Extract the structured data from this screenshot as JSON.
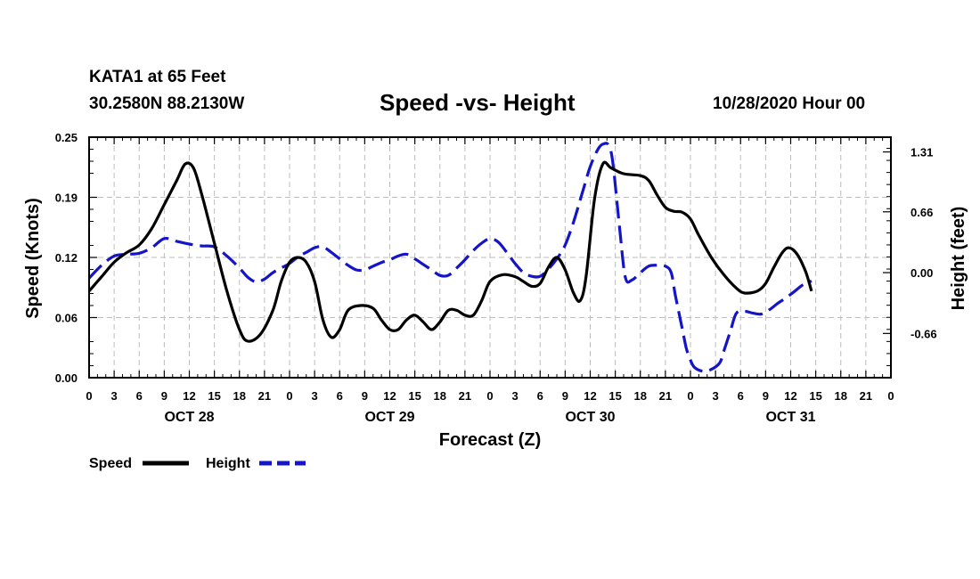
{
  "header": {
    "station": "KATA1 at 65 Feet",
    "coords": "30.2580N 88.2130W",
    "title": "Speed -vs- Height",
    "datetime": "10/28/2020 Hour 00"
  },
  "chart_data": {
    "type": "line",
    "title": "Speed -vs- Height",
    "xlabel": "Forecast (Z)",
    "ylabel_left": "Speed (Knots)",
    "ylabel_right": "Height (feet)",
    "x_range_hours": [
      0,
      96
    ],
    "x_tick_step_hours": 3,
    "x_tick_labels": [
      "0",
      "3",
      "6",
      "9",
      "12",
      "15",
      "18",
      "21",
      "0",
      "3",
      "6",
      "9",
      "12",
      "15",
      "18",
      "21",
      "0",
      "3",
      "6",
      "9",
      "12",
      "15",
      "18",
      "21",
      "0",
      "3",
      "6",
      "9",
      "12",
      "15",
      "18",
      "21",
      "0"
    ],
    "day_labels": [
      {
        "label": "OCT 28",
        "hour": 12
      },
      {
        "label": "OCT 29",
        "hour": 36
      },
      {
        "label": "OCT 30",
        "hour": 60
      },
      {
        "label": "OCT 31",
        "hour": 84
      }
    ],
    "y_left": {
      "range": [
        0,
        0.25
      ],
      "ticks": [
        "0.00",
        "0.06",
        "0.12",
        "0.19",
        "0.25"
      ],
      "tick_values": [
        0.0,
        0.0625,
        0.125,
        0.1875,
        0.25
      ]
    },
    "y_right": {
      "range": [
        -1.14,
        1.47
      ],
      "ticks": [
        "-0.66",
        "0.00",
        "0.66",
        "1.31"
      ],
      "tick_values": [
        -0.66,
        0.0,
        0.66,
        1.31
      ]
    },
    "grid": true,
    "legend": [
      {
        "label": "Speed",
        "color": "#000000",
        "style": "solid"
      },
      {
        "label": "Height",
        "color": "#1414c8",
        "style": "dashed"
      }
    ],
    "series": [
      {
        "name": "Speed",
        "axis": "left",
        "color": "#000000",
        "style": "solid",
        "points": [
          [
            0,
            0.09
          ],
          [
            1.5,
            0.105
          ],
          [
            3,
            0.12
          ],
          [
            4.5,
            0.13
          ],
          [
            6,
            0.138
          ],
          [
            7.5,
            0.155
          ],
          [
            9,
            0.18
          ],
          [
            10.5,
            0.205
          ],
          [
            11.5,
            0.222
          ],
          [
            12.5,
            0.218
          ],
          [
            13.5,
            0.19
          ],
          [
            15,
            0.14
          ],
          [
            16.5,
            0.09
          ],
          [
            18,
            0.05
          ],
          [
            19,
            0.038
          ],
          [
            20.5,
            0.045
          ],
          [
            22,
            0.07
          ],
          [
            23,
            0.1
          ],
          [
            24,
            0.12
          ],
          [
            25,
            0.125
          ],
          [
            26,
            0.12
          ],
          [
            27,
            0.1
          ],
          [
            28,
            0.06
          ],
          [
            29,
            0.042
          ],
          [
            30,
            0.05
          ],
          [
            31,
            0.07
          ],
          [
            32.5,
            0.075
          ],
          [
            34,
            0.072
          ],
          [
            35,
            0.06
          ],
          [
            36,
            0.05
          ],
          [
            37,
            0.05
          ],
          [
            38,
            0.06
          ],
          [
            39,
            0.065
          ],
          [
            40,
            0.058
          ],
          [
            41,
            0.05
          ],
          [
            42,
            0.058
          ],
          [
            43,
            0.07
          ],
          [
            44,
            0.07
          ],
          [
            45,
            0.065
          ],
          [
            46,
            0.065
          ],
          [
            47,
            0.08
          ],
          [
            48,
            0.1
          ],
          [
            49.5,
            0.107
          ],
          [
            51,
            0.105
          ],
          [
            52,
            0.1
          ],
          [
            53,
            0.095
          ],
          [
            54,
            0.098
          ],
          [
            55,
            0.115
          ],
          [
            56,
            0.125
          ],
          [
            57,
            0.112
          ],
          [
            58,
            0.088
          ],
          [
            58.8,
            0.08
          ],
          [
            59.5,
            0.105
          ],
          [
            60.5,
            0.185
          ],
          [
            61.5,
            0.222
          ],
          [
            62.5,
            0.218
          ],
          [
            64,
            0.212
          ],
          [
            66,
            0.21
          ],
          [
            67,
            0.205
          ],
          [
            68,
            0.19
          ],
          [
            69,
            0.177
          ],
          [
            70,
            0.173
          ],
          [
            71,
            0.172
          ],
          [
            72,
            0.165
          ],
          [
            73,
            0.148
          ],
          [
            74.5,
            0.125
          ],
          [
            76,
            0.107
          ],
          [
            77.5,
            0.093
          ],
          [
            78.5,
            0.088
          ],
          [
            80,
            0.09
          ],
          [
            81,
            0.098
          ],
          [
            82,
            0.115
          ],
          [
            83,
            0.13
          ],
          [
            83.8,
            0.135
          ],
          [
            84.8,
            0.128
          ],
          [
            85.8,
            0.11
          ],
          [
            86.5,
            0.09
          ]
        ]
      },
      {
        "name": "Height",
        "axis": "right",
        "color": "#1414c8",
        "style": "dashed",
        "points": [
          [
            0,
            -0.06
          ],
          [
            1.5,
            0.08
          ],
          [
            3,
            0.18
          ],
          [
            4.5,
            0.2
          ],
          [
            6,
            0.21
          ],
          [
            7.5,
            0.27
          ],
          [
            9,
            0.37
          ],
          [
            10.5,
            0.34
          ],
          [
            12,
            0.31
          ],
          [
            13.5,
            0.29
          ],
          [
            15,
            0.28
          ],
          [
            16.5,
            0.18
          ],
          [
            18,
            0.05
          ],
          [
            19,
            -0.05
          ],
          [
            20,
            -0.1
          ],
          [
            21,
            -0.07
          ],
          [
            22,
            0.0
          ],
          [
            23,
            0.05
          ],
          [
            24,
            0.1
          ],
          [
            25,
            0.17
          ],
          [
            26,
            0.22
          ],
          [
            27,
            0.27
          ],
          [
            28,
            0.28
          ],
          [
            29,
            0.22
          ],
          [
            30,
            0.15
          ],
          [
            31,
            0.08
          ],
          [
            32,
            0.03
          ],
          [
            33,
            0.03
          ],
          [
            34,
            0.07
          ],
          [
            35,
            0.11
          ],
          [
            36,
            0.14
          ],
          [
            37,
            0.18
          ],
          [
            38,
            0.2
          ],
          [
            39,
            0.15
          ],
          [
            40,
            0.09
          ],
          [
            41,
            0.03
          ],
          [
            42,
            -0.03
          ],
          [
            43,
            -0.03
          ],
          [
            44,
            0.05
          ],
          [
            45,
            0.14
          ],
          [
            46,
            0.24
          ],
          [
            47,
            0.32
          ],
          [
            48,
            0.37
          ],
          [
            49,
            0.33
          ],
          [
            50,
            0.22
          ],
          [
            51,
            0.1
          ],
          [
            52,
            0.0
          ],
          [
            53,
            -0.04
          ],
          [
            54,
            -0.04
          ],
          [
            55,
            0.04
          ],
          [
            56,
            0.15
          ],
          [
            57,
            0.3
          ],
          [
            58,
            0.55
          ],
          [
            59,
            0.85
          ],
          [
            60,
            1.15
          ],
          [
            61,
            1.35
          ],
          [
            61.7,
            1.4
          ],
          [
            62.2,
            1.38
          ],
          [
            62.7,
            1.2
          ],
          [
            63.5,
            0.5
          ],
          [
            64.2,
            -0.05
          ],
          [
            65,
            -0.08
          ],
          [
            66,
            0.0
          ],
          [
            67,
            0.07
          ],
          [
            68,
            0.08
          ],
          [
            69,
            0.07
          ],
          [
            69.7,
            0.0
          ],
          [
            70.2,
            -0.25
          ],
          [
            71,
            -0.6
          ],
          [
            71.5,
            -0.82
          ],
          [
            72,
            -0.95
          ],
          [
            72.5,
            -1.03
          ],
          [
            73.5,
            -1.07
          ],
          [
            74.5,
            -1.05
          ],
          [
            75.5,
            -0.98
          ],
          [
            76,
            -0.85
          ],
          [
            76.8,
            -0.63
          ],
          [
            77.5,
            -0.44
          ],
          [
            78.5,
            -0.42
          ],
          [
            79.5,
            -0.44
          ],
          [
            80.5,
            -0.45
          ],
          [
            81.5,
            -0.4
          ],
          [
            82.5,
            -0.33
          ],
          [
            83.5,
            -0.27
          ],
          [
            84.5,
            -0.2
          ],
          [
            85.5,
            -0.13
          ],
          [
            86.5,
            -0.09
          ]
        ]
      }
    ]
  },
  "legend": {
    "speed_label": "Speed",
    "height_label": "Height"
  }
}
